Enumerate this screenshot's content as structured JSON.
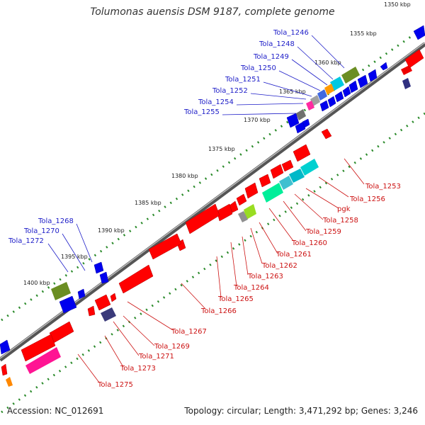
{
  "title": "Tolumonas auensis DSM 9187, complete genome",
  "accession_text": "Accession: NC_012691",
  "summary_text": "Topology: circular; Length: 3,471,292 bp; Genes: 3,246",
  "colors": {
    "backbone": "#7f7f7f",
    "tick_dots": "#2a8a2a",
    "forward_label": "#1d1dc8",
    "reverse_label": "#cc1111"
  },
  "ticks": [
    "1350 kbp",
    "1355 kbp",
    "1360 kbp",
    "1365 kbp",
    "1370 kbp",
    "1375 kbp",
    "1380 kbp",
    "1385 kbp",
    "1390 kbp",
    "1395 kbp",
    "1400 kbp"
  ],
  "forward_labels": [
    "Tola_1246",
    "Tola_1248",
    "Tola_1249",
    "Tola_1250",
    "Tola_1251",
    "Tola_1252",
    "Tola_1254",
    "Tola_1255",
    "Tola_1268",
    "Tola_1270",
    "Tola_1272"
  ],
  "reverse_labels": [
    "Tola_1253",
    "Tola_1256",
    "pgk",
    "Tola_1258",
    "Tola_1259",
    "Tola_1260",
    "Tola_1261",
    "Tola_1262",
    "Tola_1263",
    "Tola_1264",
    "Tola_1265",
    "Tola_1266",
    "Tola_1267",
    "Tola_1269",
    "Tola_1271",
    "Tola_1273",
    "Tola_1275"
  ]
}
